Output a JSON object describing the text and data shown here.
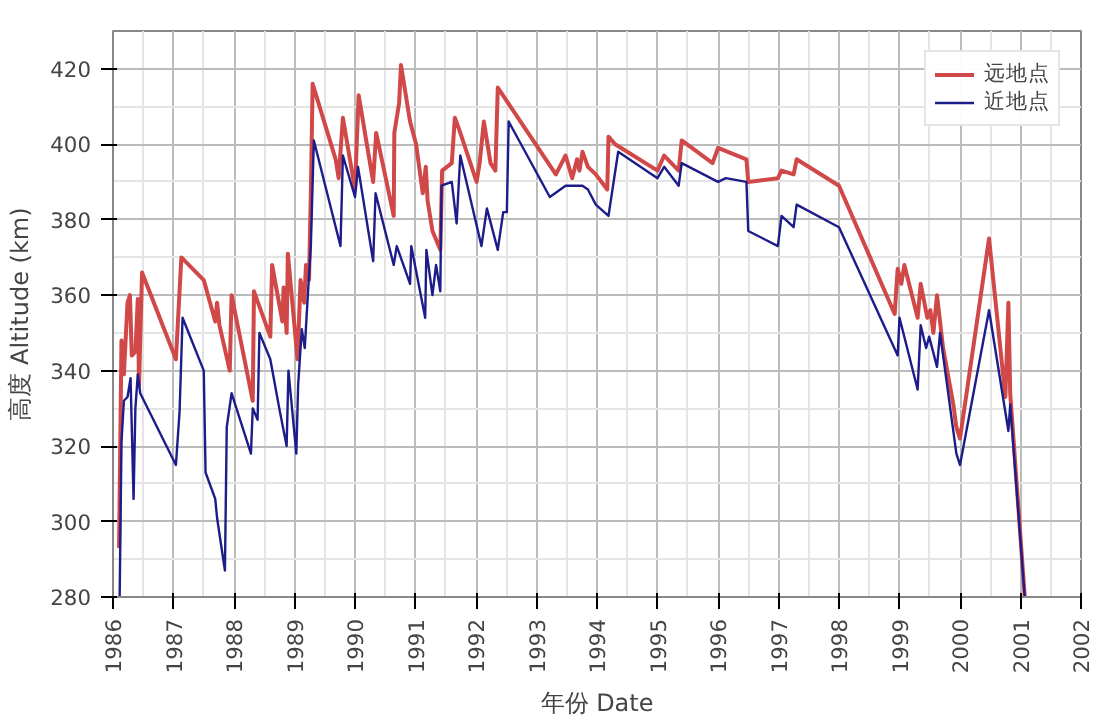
{
  "chart_data": {
    "type": "line",
    "xlabel": "年份 Date",
    "ylabel": "高度 Altitude (km)",
    "xlim": [
      1986,
      2002
    ],
    "xticks": [
      1986,
      1987,
      1988,
      1989,
      1990,
      1991,
      1992,
      1993,
      1994,
      1995,
      1996,
      1997,
      1998,
      1999,
      2000,
      2001,
      2002
    ],
    "ylim": [
      280,
      430
    ],
    "yticks": [
      280,
      300,
      320,
      340,
      360,
      380,
      400,
      420
    ],
    "grid": true,
    "legend": "top right",
    "line_style": "solid",
    "series": [
      {
        "name": "远地点",
        "color": "#d04848",
        "x": [
          1986.1,
          1986.14,
          1986.18,
          1986.24,
          1986.28,
          1986.31,
          1986.37,
          1986.41,
          1986.43,
          1986.48,
          1987.04,
          1987.13,
          1987.5,
          1987.69,
          1987.72,
          1987.76,
          1987.93,
          1987.96,
          1988.31,
          1988.33,
          1988.6,
          1988.63,
          1988.8,
          1988.82,
          1988.87,
          1988.89,
          1989.05,
          1989.1,
          1989.16,
          1989.19,
          1989.24,
          1989.27,
          1989.3,
          1989.68,
          1989.73,
          1989.8,
          1990.0,
          1990.06,
          1990.3,
          1990.35,
          1990.64,
          1990.65,
          1990.73,
          1990.76,
          1990.91,
          1991.01,
          1991.12,
          1991.17,
          1991.2,
          1991.28,
          1991.41,
          1991.44,
          1991.6,
          1991.65,
          1991.72,
          1992.01,
          1992.06,
          1992.13,
          1992.24,
          1992.32,
          1992.36,
          1993.32,
          1993.48,
          1993.59,
          1993.67,
          1993.71,
          1993.76,
          1993.85,
          1993.98,
          1994.17,
          1994.19,
          1994.3,
          1995.0,
          1995.11,
          1995.35,
          1995.4,
          1995.91,
          1996.0,
          1996.47,
          1996.5,
          1996.99,
          1997.05,
          1997.25,
          1997.3,
          1998.0,
          1998.92,
          1998.97,
          1999.03,
          1999.08,
          1999.3,
          1999.35,
          1999.46,
          1999.51,
          1999.56,
          1999.62,
          1999.72,
          1999.89,
          1999.94,
          2000.0,
          2000.48,
          2000.75,
          2000.8,
          2000.83,
          2001.07
        ],
        "values": [
          293,
          348,
          339,
          358,
          360,
          344,
          345,
          359,
          336,
          366,
          343,
          370,
          364,
          353,
          358,
          352,
          340,
          360,
          332,
          361,
          349,
          368,
          353,
          362,
          350,
          371,
          343,
          364,
          358,
          368,
          364,
          387,
          416,
          396,
          391,
          407,
          388,
          413,
          390,
          403,
          381,
          403,
          411,
          421,
          406,
          400,
          387,
          394,
          385,
          377,
          372,
          393,
          395,
          407,
          404,
          390,
          395,
          406,
          395,
          393,
          415,
          392,
          397,
          391,
          396,
          393,
          398,
          394,
          392,
          388,
          402,
          400,
          393,
          397,
          393,
          401,
          395,
          399,
          396,
          390,
          391,
          393,
          392,
          396,
          389,
          355,
          367,
          363,
          368,
          354,
          363,
          354,
          356,
          350,
          360,
          346,
          331,
          325,
          322,
          375,
          333,
          358,
          334,
          280
        ]
      },
      {
        "name": "近地点",
        "color": "#1c1c8a",
        "x": [
          1986.11,
          1986.14,
          1986.18,
          1986.24,
          1986.29,
          1986.34,
          1986.37,
          1986.41,
          1986.45,
          1987.04,
          1987.1,
          1987.15,
          1987.5,
          1987.53,
          1987.69,
          1987.72,
          1987.85,
          1987.88,
          1987.96,
          1988.28,
          1988.31,
          1988.39,
          1988.42,
          1988.6,
          1988.76,
          1988.87,
          1988.9,
          1989.03,
          1989.06,
          1989.12,
          1989.17,
          1989.22,
          1989.27,
          1989.32,
          1989.76,
          1989.8,
          1990.0,
          1990.05,
          1990.3,
          1990.34,
          1990.64,
          1990.69,
          1990.91,
          1990.93,
          1991.16,
          1991.18,
          1991.28,
          1991.34,
          1991.41,
          1991.43,
          1991.6,
          1991.68,
          1991.74,
          1992.09,
          1992.18,
          1992.36,
          1992.45,
          1992.51,
          1992.54,
          1993.22,
          1993.48,
          1993.76,
          1993.85,
          1993.98,
          1994.19,
          1994.35,
          1995.0,
          1995.11,
          1995.35,
          1995.4,
          1996.0,
          1996.13,
          1996.47,
          1996.5,
          1996.99,
          1997.05,
          1997.25,
          1997.3,
          1998.0,
          1998.97,
          1999.0,
          1999.3,
          1999.35,
          1999.44,
          1999.49,
          1999.62,
          1999.67,
          1999.94,
          2000.0,
          2000.48,
          2000.8,
          2000.83,
          2001.07
        ],
        "values": [
          280,
          321,
          332,
          333,
          338,
          306,
          330,
          339,
          334,
          315,
          329,
          354,
          340,
          313,
          306,
          301,
          287,
          325,
          334,
          318,
          330,
          327,
          350,
          343,
          329,
          320,
          340,
          318,
          336,
          351,
          346,
          360,
          373,
          401,
          373,
          397,
          386,
          394,
          369,
          387,
          368,
          373,
          363,
          373,
          354,
          372,
          360,
          368,
          361,
          389,
          390,
          379,
          397,
          373,
          383,
          372,
          382,
          382,
          406,
          386,
          389,
          389,
          388,
          384,
          381,
          398,
          391,
          394,
          389,
          395,
          390,
          391,
          390,
          377,
          373,
          381,
          378,
          384,
          378,
          344,
          354,
          335,
          352,
          346,
          349,
          341,
          350,
          318,
          315,
          356,
          324,
          331,
          280
        ]
      }
    ]
  }
}
